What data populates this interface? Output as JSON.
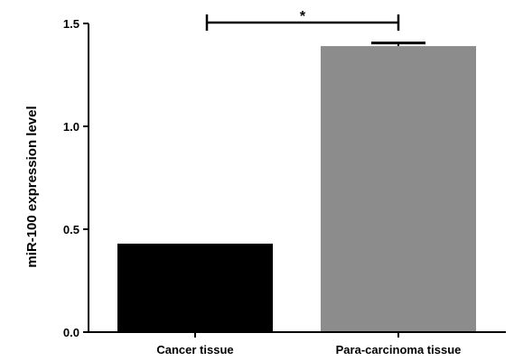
{
  "chart_data": {
    "type": "bar",
    "categories": [
      "Cancer tissue",
      "Para-carcinoma tissue"
    ],
    "values": [
      0.43,
      1.39
    ],
    "errors": [
      0.0,
      0.015
    ],
    "colors": [
      "#000000",
      "#8c8c8c"
    ],
    "ylabel": "miR-100 expression level",
    "ylim": [
      0,
      1.5
    ],
    "yticks": [
      0.0,
      0.5,
      1.0,
      1.5
    ],
    "ytick_labels": [
      "0.0",
      "0.5",
      "1.0",
      "1.5"
    ],
    "grid": false,
    "significance": {
      "from": 0,
      "to": 1,
      "y": 1.5,
      "label": "*"
    }
  }
}
